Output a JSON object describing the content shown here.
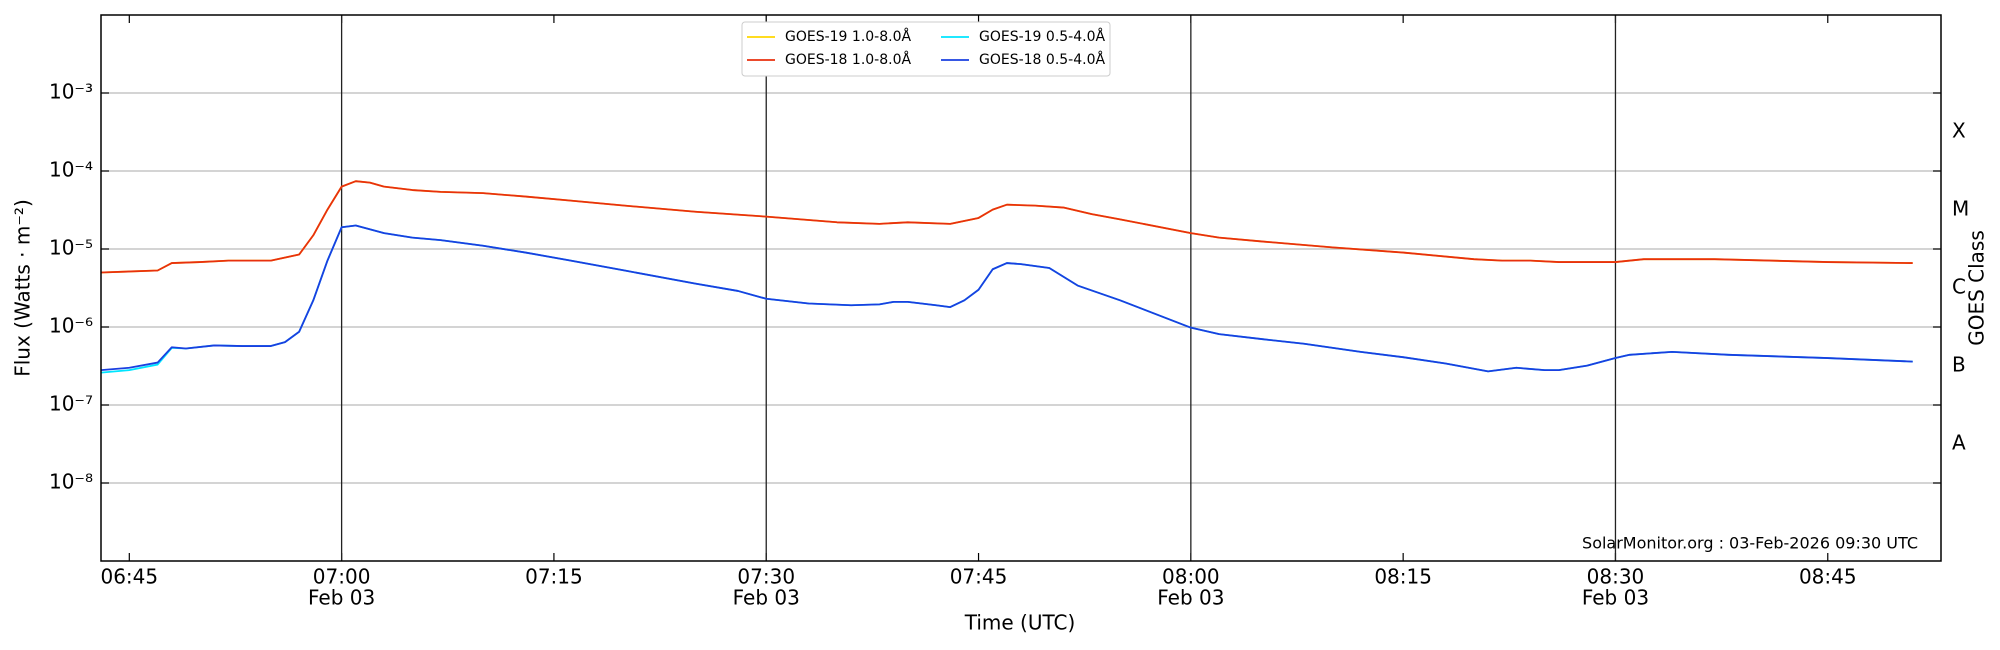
{
  "chart_data": {
    "type": "line",
    "xlabel": "Time (UTC)",
    "ylabel": "Flux (Watts · m⁻²)",
    "y2label": "GOES Class",
    "annotation": "SolarMonitor.org : 03-Feb-2026 09:30 UTC",
    "log_y": true,
    "grid": true,
    "legend": "upper center",
    "xlim": [
      "06:43",
      "08:53"
    ],
    "xticks": [
      "06:45",
      "07:00",
      "07:15",
      "07:30",
      "07:45",
      "08:00",
      "08:15",
      "08:30",
      "08:45"
    ],
    "xtick_dates": [
      null,
      "Feb 03",
      null,
      "Feb 03",
      null,
      "Feb 03",
      null,
      "Feb 03",
      null
    ],
    "ylim": [
      1e-09,
      0.01
    ],
    "yticks": [
      {
        "value": 1e-08,
        "label": "10⁻⁸"
      },
      {
        "value": 1e-07,
        "label": "10⁻⁷"
      },
      {
        "value": 1e-06,
        "label": "10⁻⁶"
      },
      {
        "value": 1e-05,
        "label": "10⁻⁵"
      },
      {
        "value": 0.0001,
        "label": "10⁻⁴"
      },
      {
        "value": 0.001,
        "label": "10⁻³"
      }
    ],
    "y2lim": [
      1e-09,
      0.01
    ],
    "y2ticks": [
      {
        "value": 3.162e-08,
        "label": "A"
      },
      {
        "value": 3.162e-07,
        "label": "B"
      },
      {
        "value": 3.162e-06,
        "label": "C"
      },
      {
        "value": 3.162e-05,
        "label": "M"
      },
      {
        "value": 0.0003162,
        "label": "X"
      }
    ],
    "series": [
      {
        "name": "GOES-19 1.0-8.0Å",
        "color": "#ffd700",
        "x": [
          "06:43",
          "06:47",
          "06:48",
          "06:50",
          "06:52",
          "06:55",
          "06:57",
          "06:58",
          "06:59",
          "07:00",
          "07:01",
          "07:02",
          "07:03",
          "07:05",
          "07:07",
          "07:10",
          "07:13",
          "07:16",
          "07:20",
          "07:25",
          "07:30",
          "07:35",
          "07:38",
          "07:40",
          "07:43",
          "07:45",
          "07:46",
          "07:47",
          "07:49",
          "07:51",
          "07:53",
          "07:55",
          "08:00",
          "08:02",
          "08:05",
          "08:10",
          "08:15",
          "08:20",
          "08:22",
          "08:24",
          "08:26",
          "08:30",
          "08:32",
          "08:37",
          "08:45",
          "08:51"
        ],
        "values": [
          5e-06,
          5.3e-06,
          6.6e-06,
          6.8e-06,
          7.1e-06,
          7.1e-06,
          8.5e-06,
          1.5e-05,
          3.2e-05,
          6.3e-05,
          7.4e-05,
          7.1e-05,
          6.3e-05,
          5.7e-05,
          5.4e-05,
          5.2e-05,
          4.7e-05,
          4.2e-05,
          3.6e-05,
          3e-05,
          2.6e-05,
          2.2e-05,
          2.1e-05,
          2.2e-05,
          2.1e-05,
          2.5e-05,
          3.2e-05,
          3.7e-05,
          3.6e-05,
          3.4e-05,
          2.8e-05,
          2.4e-05,
          1.6e-05,
          1.4e-05,
          1.25e-05,
          1.05e-05,
          9e-06,
          7.4e-06,
          7.1e-06,
          7.1e-06,
          6.8e-06,
          6.8e-06,
          7.4e-06,
          7.4e-06,
          6.8e-06,
          6.6e-06
        ]
      },
      {
        "name": "GOES-18 1.0-8.0Å",
        "color": "#e8300e",
        "x": [
          "06:43",
          "06:47",
          "06:48",
          "06:50",
          "06:52",
          "06:55",
          "06:57",
          "06:58",
          "06:59",
          "07:00",
          "07:01",
          "07:02",
          "07:03",
          "07:05",
          "07:07",
          "07:10",
          "07:13",
          "07:16",
          "07:20",
          "07:25",
          "07:30",
          "07:35",
          "07:38",
          "07:40",
          "07:43",
          "07:45",
          "07:46",
          "07:47",
          "07:49",
          "07:51",
          "07:53",
          "07:55",
          "08:00",
          "08:02",
          "08:05",
          "08:10",
          "08:15",
          "08:20",
          "08:22",
          "08:24",
          "08:26",
          "08:30",
          "08:32",
          "08:37",
          "08:45",
          "08:51"
        ],
        "values": [
          5e-06,
          5.3e-06,
          6.6e-06,
          6.8e-06,
          7.1e-06,
          7.1e-06,
          8.5e-06,
          1.5e-05,
          3.2e-05,
          6.3e-05,
          7.4e-05,
          7.1e-05,
          6.3e-05,
          5.7e-05,
          5.4e-05,
          5.2e-05,
          4.7e-05,
          4.2e-05,
          3.6e-05,
          3e-05,
          2.6e-05,
          2.2e-05,
          2.1e-05,
          2.2e-05,
          2.1e-05,
          2.5e-05,
          3.2e-05,
          3.7e-05,
          3.6e-05,
          3.4e-05,
          2.8e-05,
          2.4e-05,
          1.6e-05,
          1.4e-05,
          1.25e-05,
          1.05e-05,
          9e-06,
          7.4e-06,
          7.1e-06,
          7.1e-06,
          6.8e-06,
          6.8e-06,
          7.4e-06,
          7.4e-06,
          6.8e-06,
          6.6e-06
        ]
      },
      {
        "name": "GOES-19 0.5-4.0Å",
        "color": "#00e5ff",
        "x": [
          "06:43",
          "06:45",
          "06:47",
          "06:48",
          "06:49",
          "06:51",
          "06:53",
          "06:55",
          "06:56",
          "06:57",
          "06:58",
          "06:59",
          "07:00",
          "07:01",
          "07:03",
          "07:05",
          "07:07",
          "07:10",
          "07:13",
          "07:16",
          "07:20",
          "07:25",
          "07:28",
          "07:30",
          "07:33",
          "07:36",
          "07:38",
          "07:39",
          "07:40",
          "07:42",
          "07:43",
          "07:44",
          "07:45",
          "07:46",
          "07:47",
          "07:48",
          "07:50",
          "07:52",
          "07:55",
          "08:00",
          "08:02",
          "08:05",
          "08:08",
          "08:12",
          "08:15",
          "08:18",
          "08:21",
          "08:23",
          "08:25",
          "08:26",
          "08:28",
          "08:30",
          "08:31",
          "08:34",
          "08:38",
          "08:45",
          "08:51"
        ],
        "values": [
          2.6e-07,
          2.8e-07,
          3.3e-07,
          5.4e-07,
          5.3e-07,
          5.8e-07,
          5.7e-07,
          5.7e-07,
          6.4e-07,
          8.7e-07,
          2.2e-06,
          7.1e-06,
          1.9e-05,
          2e-05,
          1.6e-05,
          1.4e-05,
          1.3e-05,
          1.1e-05,
          9e-06,
          7.2e-06,
          5.3e-06,
          3.6e-06,
          2.9e-06,
          2.3e-06,
          2e-06,
          1.9e-06,
          1.95e-06,
          2.1e-06,
          2.1e-06,
          1.9e-06,
          1.8e-06,
          2.2e-06,
          3e-06,
          5.5e-06,
          6.6e-06,
          6.4e-06,
          5.7e-06,
          3.4e-06,
          2.2e-06,
          9.8e-07,
          8.1e-07,
          7e-07,
          6.1e-07,
          4.8e-07,
          4.1e-07,
          3.4e-07,
          2.7e-07,
          3e-07,
          2.8e-07,
          2.8e-07,
          3.2e-07,
          4e-07,
          4.4e-07,
          4.8e-07,
          4.4e-07,
          4e-07,
          3.6e-07
        ]
      },
      {
        "name": "GOES-18 0.5-4.0Å",
        "color": "#1a3fe0",
        "x": [
          "06:43",
          "06:45",
          "06:47",
          "06:48",
          "06:49",
          "06:51",
          "06:53",
          "06:55",
          "06:56",
          "06:57",
          "06:58",
          "06:59",
          "07:00",
          "07:01",
          "07:03",
          "07:05",
          "07:07",
          "07:10",
          "07:13",
          "07:16",
          "07:20",
          "07:25",
          "07:28",
          "07:30",
          "07:33",
          "07:36",
          "07:38",
          "07:39",
          "07:40",
          "07:42",
          "07:43",
          "07:44",
          "07:45",
          "07:46",
          "07:47",
          "07:48",
          "07:50",
          "07:52",
          "07:55",
          "08:00",
          "08:02",
          "08:05",
          "08:08",
          "08:12",
          "08:15",
          "08:18",
          "08:21",
          "08:23",
          "08:25",
          "08:26",
          "08:28",
          "08:30",
          "08:31",
          "08:34",
          "08:38",
          "08:45",
          "08:51"
        ],
        "values": [
          2.8e-07,
          3e-07,
          3.5e-07,
          5.5e-07,
          5.3e-07,
          5.8e-07,
          5.7e-07,
          5.7e-07,
          6.4e-07,
          8.7e-07,
          2.2e-06,
          7.1e-06,
          1.9e-05,
          2e-05,
          1.6e-05,
          1.4e-05,
          1.3e-05,
          1.1e-05,
          9e-06,
          7.2e-06,
          5.3e-06,
          3.6e-06,
          2.9e-06,
          2.3e-06,
          2e-06,
          1.9e-06,
          1.95e-06,
          2.1e-06,
          2.1e-06,
          1.9e-06,
          1.8e-06,
          2.2e-06,
          3e-06,
          5.5e-06,
          6.6e-06,
          6.4e-06,
          5.7e-06,
          3.4e-06,
          2.2e-06,
          9.8e-07,
          8.1e-07,
          7e-07,
          6.1e-07,
          4.8e-07,
          4.1e-07,
          3.4e-07,
          2.7e-07,
          3e-07,
          2.8e-07,
          2.8e-07,
          3.2e-07,
          4e-07,
          4.4e-07,
          4.8e-07,
          4.4e-07,
          4e-07,
          3.6e-07
        ]
      }
    ]
  }
}
